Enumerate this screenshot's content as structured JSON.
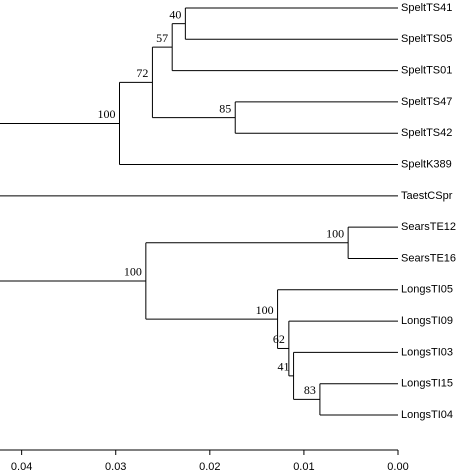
{
  "chart_data": {
    "type": "dendrogram",
    "xlim": [
      0.0423,
      0
    ],
    "xticks": [
      0.04,
      0.03,
      0.02,
      0.01,
      {
        "value": 0,
        "label": "0.00"
      }
    ],
    "clades": [
      {
        "height": 0.0296,
        "support": "100",
        "children": [
          {
            "height": 0.0261,
            "support": "72",
            "children": [
              {
                "height": 0.024,
                "support": "57",
                "children": [
                  {
                    "height": 0.0226,
                    "support": "40",
                    "children": [
                      {
                        "label": "SpeltTS41"
                      },
                      {
                        "label": "SpeltTS05"
                      }
                    ]
                  },
                  {
                    "label": "SpeltTS01"
                  }
                ]
              },
              {
                "height": 0.0173,
                "support": "85",
                "children": [
                  {
                    "label": "SpeltTS47"
                  },
                  {
                    "label": "SpeltTS42"
                  }
                ]
              }
            ]
          },
          {
            "label": "SpeltK389"
          }
        ]
      },
      {
        "label": "TaestCSpr"
      },
      {
        "height": 0.0268,
        "support": "100",
        "children": [
          {
            "height": 0.0053,
            "support": "100",
            "children": [
              {
                "label": "SearsTE12"
              },
              {
                "label": "SearsTE16"
              }
            ]
          },
          {
            "height": 0.0128,
            "support": "100",
            "children": [
              {
                "label": "LongsTI05"
              },
              {
                "height": 0.0116,
                "support": "62",
                "children": [
                  {
                    "label": "LongsTI09"
                  },
                  {
                    "height": 0.0111,
                    "support": "41",
                    "children": [
                      {
                        "label": "LongsTI03"
                      },
                      {
                        "height": 0.0083,
                        "support": "83",
                        "children": [
                          {
                            "label": "LongsTI15"
                          },
                          {
                            "label": "LongsTI04"
                          }
                        ]
                      }
                    ]
                  }
                ]
              }
            ]
          }
        ]
      }
    ]
  }
}
